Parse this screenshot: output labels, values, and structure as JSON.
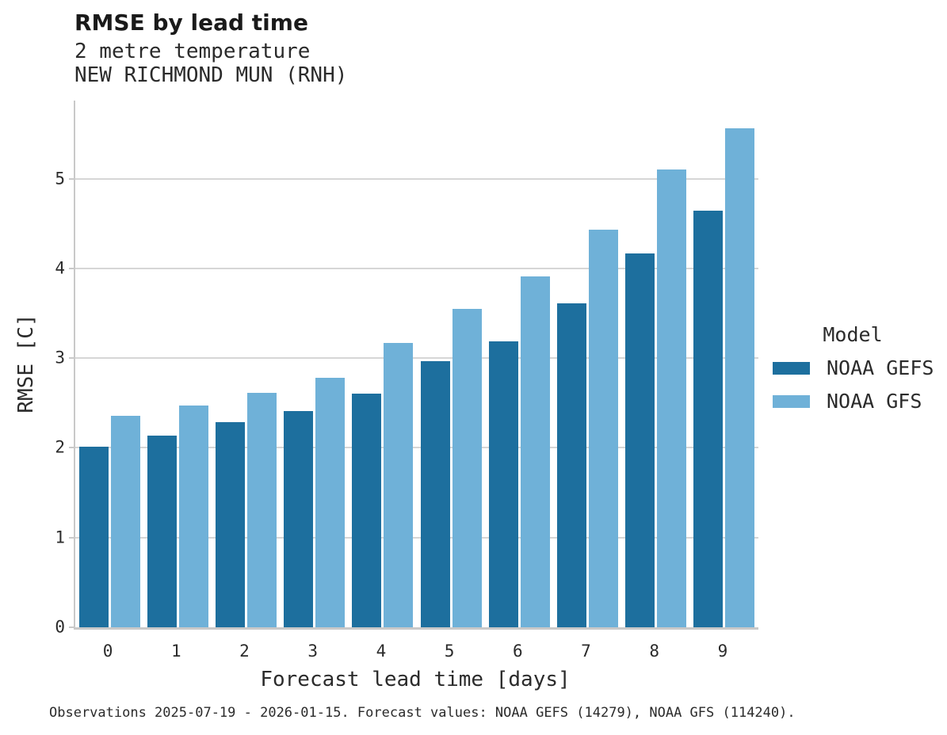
{
  "header": {
    "title": "RMSE by lead time",
    "subtitle_line1": "2 metre temperature",
    "subtitle_line2": "NEW RICHMOND MUN (RNH)"
  },
  "chart_data": {
    "type": "bar",
    "title": "RMSE by lead time",
    "subtitle": "2 metre temperature — NEW RICHMOND MUN (RNH)",
    "categories": [
      "0",
      "1",
      "2",
      "3",
      "4",
      "5",
      "6",
      "7",
      "8",
      "9"
    ],
    "series": [
      {
        "name": "NOAA GEFS",
        "color": "#1d6f9e",
        "values": [
          2.01,
          2.14,
          2.29,
          2.41,
          2.6,
          2.97,
          3.19,
          3.61,
          4.17,
          4.64
        ]
      },
      {
        "name": "NOAA GFS",
        "color": "#6fb1d8",
        "values": [
          2.36,
          2.47,
          2.61,
          2.78,
          3.17,
          3.55,
          3.91,
          4.43,
          5.1,
          5.56
        ]
      }
    ],
    "xlabel": "Forecast lead time [days]",
    "ylabel": "RMSE [C]",
    "yticks": [
      0,
      1,
      2,
      3,
      4,
      5
    ],
    "ylim": [
      0,
      5.87
    ],
    "grid": true,
    "legend": {
      "title": "Model",
      "position": "right"
    }
  },
  "footer": {
    "note": "Observations 2025-07-19 - 2026-01-15. Forecast values: NOAA GEFS (14279), NOAA GFS (114240)."
  }
}
